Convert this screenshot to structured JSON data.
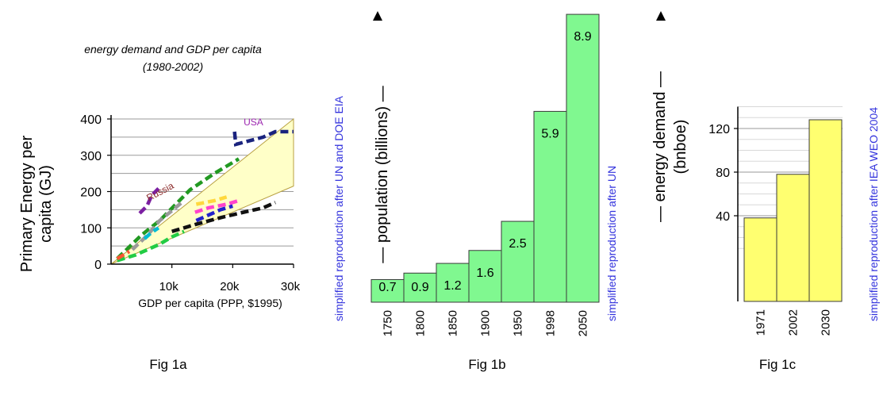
{
  "colors": {
    "bar_green": "#80f890",
    "bar_yellow": "#ffff70",
    "wedge_fill": "#ffffc8",
    "source_text": "#3333dd",
    "grid": "#9a9a9a"
  },
  "chart_data": [
    {
      "id": "fig1a",
      "type": "line",
      "caption": "Fig 1a",
      "title_line1": "energy demand and GDP per capita",
      "title_line2": "(1980-2002)",
      "ylabel_line1": "Primary Energy per",
      "ylabel_line2": "capita (GJ)",
      "xlabel": "GDP per capita (PPP, $1995)",
      "source": "simplified reproduction after UN and DOE EIA",
      "xlim": [
        0,
        30000
      ],
      "ylim": [
        0,
        400
      ],
      "x_ticks": [
        10000,
        20000,
        30000
      ],
      "x_tick_labels": [
        "10k",
        "20k",
        "30k"
      ],
      "y_ticks": [
        0,
        100,
        200,
        300,
        400
      ],
      "y_tick_labels": [
        "0",
        "100",
        "200",
        "300",
        "400"
      ],
      "grid": true,
      "wedge": [
        [
          0,
          0
        ],
        [
          30000,
          400
        ],
        [
          30000,
          215
        ]
      ],
      "series": [
        {
          "label": "USA",
          "color": "#1a237e",
          "label_color": "#9c27b0",
          "label_at": [
            21800,
            383
          ],
          "points": [
            [
              20300,
              365
            ],
            [
              20500,
              330
            ],
            [
              25000,
              350
            ],
            [
              27000,
              365
            ],
            [
              30000,
              365
            ]
          ]
        },
        {
          "label": "Russia",
          "color": "#7b1fa2",
          "label_color": "#8b2a2a",
          "label_at": [
            6200,
            173
          ],
          "points": [
            [
              4700,
              140
            ],
            [
              5900,
              160
            ],
            [
              6700,
              190
            ],
            [
              7900,
              210
            ]
          ]
        },
        {
          "color": "#229922",
          "points": [
            [
              1000,
              15
            ],
            [
              5000,
              80
            ],
            [
              8000,
              120
            ],
            [
              13000,
              205
            ],
            [
              17000,
              250
            ],
            [
              21000,
              290
            ]
          ]
        },
        {
          "color": "#9a9a9a",
          "points": [
            [
              3500,
              40
            ],
            [
              6000,
              80
            ],
            [
              8000,
              120
            ],
            [
              10200,
              150
            ],
            [
              12000,
              175
            ]
          ]
        },
        {
          "color": "#ffd83d",
          "points": [
            [
              14000,
              165
            ],
            [
              17000,
              175
            ],
            [
              19000,
              185
            ]
          ]
        },
        {
          "color": "#ff44cc",
          "points": [
            [
              13800,
              143
            ],
            [
              16000,
              155
            ],
            [
              19000,
              165
            ],
            [
              21000,
              175
            ]
          ]
        },
        {
          "color": "#2222cc",
          "points": [
            [
              14000,
              120
            ],
            [
              16000,
              135
            ],
            [
              18000,
              150
            ],
            [
              20000,
              160
            ]
          ]
        },
        {
          "color": "#111111",
          "points": [
            [
              10000,
              90
            ],
            [
              14000,
              110
            ],
            [
              18000,
              128
            ],
            [
              21000,
              140
            ],
            [
              25000,
              155
            ],
            [
              27000,
              170
            ]
          ]
        },
        {
          "color": "#22cc44",
          "points": [
            [
              1000,
              10
            ],
            [
              4000,
              25
            ],
            [
              6000,
              40
            ],
            [
              8000,
              55
            ],
            [
              10000,
              75
            ],
            [
              12000,
              90
            ]
          ]
        },
        {
          "color": "#00bcd4",
          "points": [
            [
              5500,
              70
            ],
            [
              6500,
              85
            ],
            [
              7800,
              100
            ]
          ]
        },
        {
          "color": "#ff5533",
          "points": [
            [
              1000,
              15
            ],
            [
              2000,
              25
            ],
            [
              3000,
              35
            ]
          ]
        }
      ]
    },
    {
      "id": "fig1b",
      "type": "bar",
      "caption": "Fig 1b",
      "ylabel": "population (billions)",
      "source": "simplified reproduction after UN",
      "categories": [
        "1750",
        "1800",
        "1850",
        "1900",
        "1950",
        "1998",
        "2050"
      ],
      "values": [
        0.7,
        0.9,
        1.2,
        1.6,
        2.5,
        5.9,
        8.9
      ],
      "labels": [
        "0.7",
        "0.9",
        "1.2",
        "1.6",
        "2.5",
        "5.9",
        "8.9"
      ],
      "ylim": [
        0,
        9
      ]
    },
    {
      "id": "fig1c",
      "type": "bar",
      "caption": "Fig 1c",
      "ylabel_line1": "energy demand",
      "ylabel_line2": "(bnboe)",
      "source": "simplified reproduction after IEA WEO 2004",
      "categories": [
        "1971",
        "2002",
        "2030"
      ],
      "values": [
        38,
        78,
        128
      ],
      "ylim": [
        0,
        140
      ],
      "y_ticks": [
        40,
        80,
        120
      ],
      "y_tick_labels": [
        "40",
        "80",
        "120"
      ],
      "grid": true
    }
  ]
}
